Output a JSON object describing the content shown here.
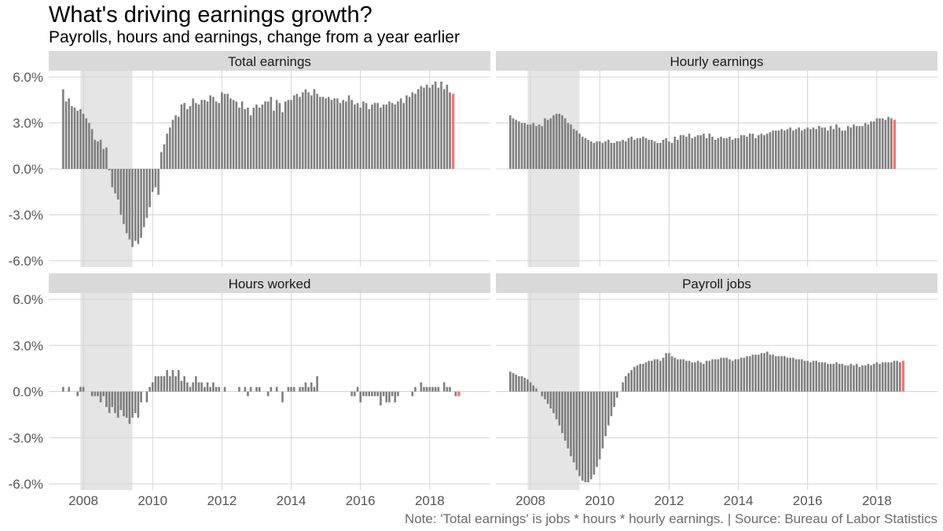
{
  "title": "What's driving earnings growth?",
  "subtitle": "Payrolls, hours and earnings, change from a year earlier",
  "caption": "Note: 'Total earnings' is jobs * hours * hourly earnings. | Source: Bureau of Labor Statistics",
  "chart_data": {
    "type": "bar",
    "layout": "facet-grid-2x2",
    "frequency": "monthly",
    "x_start": "2007-06",
    "x_end": "2019-04",
    "x_ticks": [
      "2008",
      "2010",
      "2012",
      "2014",
      "2016",
      "2018"
    ],
    "y_ticks": [
      "6.0%",
      "3.0%",
      "0.0%",
      "-3.0%",
      "-6.0%"
    ],
    "ylim": [
      -6.0,
      6.0
    ],
    "units": "percent change from a year earlier",
    "recession": {
      "start": "2007-12",
      "end": "2009-06"
    },
    "grid": true,
    "colors": {
      "bars": "#7f7f7f",
      "latest": "#f8766d",
      "recession": "#e5e5e5",
      "strip": "#d9d9d9",
      "grid": "#ebebeb"
    },
    "panels": [
      {
        "name": "Total earnings",
        "values": [
          5.2,
          4.4,
          4.6,
          4.1,
          4.0,
          3.8,
          3.9,
          3.6,
          3.3,
          3.0,
          2.6,
          1.9,
          1.8,
          1.9,
          1.3,
          1.4,
          -0.1,
          -1.2,
          -1.6,
          -2.0,
          -3.0,
          -3.6,
          -4.2,
          -4.6,
          -5.1,
          -4.7,
          -4.9,
          -4.5,
          -3.8,
          -3.2,
          -2.5,
          -1.5,
          -1.2,
          -1.7,
          1.1,
          1.6,
          2.3,
          2.7,
          3.2,
          3.5,
          3.4,
          4.2,
          4.3,
          3.9,
          4.1,
          4.6,
          4.3,
          4.2,
          4.5,
          4.5,
          4.4,
          4.8,
          4.7,
          4.4,
          4.3,
          5.0,
          4.9,
          4.9,
          4.6,
          4.5,
          4.4,
          4.0,
          4.4,
          3.9,
          4.0,
          3.5,
          4.0,
          4.2,
          4.0,
          4.2,
          4.4,
          4.4,
          4.7,
          3.8,
          4.5,
          4.3,
          3.7,
          4.4,
          4.5,
          4.5,
          4.8,
          4.9,
          4.7,
          5.0,
          5.2,
          5.0,
          4.8,
          5.2,
          4.9,
          4.7,
          4.7,
          4.6,
          4.7,
          4.5,
          4.6,
          4.6,
          4.3,
          4.5,
          4.4,
          4.8,
          4.5,
          4.2,
          4.3,
          4.0,
          4.4,
          4.3,
          3.9,
          4.2,
          4.3,
          4.3,
          4.0,
          4.2,
          4.2,
          4.4,
          4.3,
          4.2,
          4.4,
          4.6,
          4.3,
          4.8,
          4.7,
          5.0,
          4.9,
          5.2,
          5.4,
          5.3,
          5.5,
          5.3,
          5.5,
          5.7,
          5.3,
          5.7,
          5.2,
          5.5,
          5.0,
          4.9
        ]
      },
      {
        "name": "Hourly earnings",
        "values": [
          3.5,
          3.3,
          3.2,
          3.1,
          3.0,
          3.0,
          2.9,
          2.9,
          3.0,
          2.8,
          2.9,
          2.8,
          3.3,
          3.2,
          3.3,
          3.5,
          3.6,
          3.6,
          3.5,
          3.3,
          3.0,
          2.9,
          2.6,
          2.5,
          2.3,
          2.1,
          2.0,
          1.9,
          1.8,
          1.7,
          1.8,
          1.8,
          1.7,
          1.8,
          1.9,
          1.7,
          1.7,
          1.8,
          1.8,
          1.9,
          1.8,
          2.0,
          2.1,
          1.9,
          2.0,
          2.0,
          2.1,
          2.0,
          1.9,
          1.9,
          1.8,
          1.7,
          1.7,
          1.9,
          2.0,
          1.8,
          1.7,
          2.1,
          1.9,
          2.2,
          2.2,
          2.1,
          2.3,
          2.0,
          2.1,
          2.2,
          2.2,
          2.3,
          2.0,
          2.3,
          2.1,
          1.9,
          2.0,
          2.1,
          2.0,
          2.0,
          2.1,
          1.9,
          2.0,
          2.0,
          2.2,
          2.2,
          2.1,
          2.3,
          2.3,
          2.0,
          2.2,
          2.3,
          2.2,
          2.3,
          2.4,
          2.5,
          2.5,
          2.5,
          2.6,
          2.5,
          2.6,
          2.7,
          2.5,
          2.6,
          2.7,
          2.5,
          2.6,
          2.7,
          2.6,
          2.7,
          2.6,
          2.8,
          2.7,
          2.7,
          2.5,
          2.8,
          2.6,
          2.9,
          2.7,
          2.5,
          2.5,
          2.8,
          2.7,
          2.9,
          2.8,
          2.8,
          2.8,
          3.0,
          2.9,
          3.1,
          3.1,
          3.3,
          3.3,
          3.3,
          3.2,
          3.4,
          3.3,
          3.2
        ]
      },
      {
        "name": "Hours worked",
        "values": [
          0.3,
          0.0,
          0.3,
          0.0,
          0.0,
          -0.3,
          0.3,
          0.3,
          0.0,
          0.0,
          -0.3,
          -0.3,
          -0.3,
          -0.7,
          -0.3,
          -1.0,
          -1.4,
          -1.0,
          -1.4,
          -1.7,
          -1.2,
          -1.6,
          -1.7,
          -2.1,
          -1.7,
          -1.4,
          -1.7,
          -0.7,
          0.0,
          -0.7,
          0.3,
          0.6,
          1.0,
          1.0,
          1.0,
          1.0,
          1.4,
          1.0,
          1.4,
          1.0,
          1.4,
          0.7,
          1.0,
          0.6,
          0.3,
          0.6,
          1.0,
          0.6,
          0.6,
          0.3,
          0.6,
          0.3,
          0.6,
          0.3,
          0.3,
          0.0,
          0.3,
          0.0,
          0.0,
          0.0,
          0.0,
          0.3,
          0.0,
          0.3,
          -0.3,
          0.3,
          0.0,
          0.3,
          0.3,
          0.0,
          0.0,
          -0.3,
          0.3,
          0.0,
          0.3,
          0.0,
          -0.7,
          0.0,
          0.3,
          0.3,
          0.3,
          0.0,
          0.3,
          0.3,
          0.6,
          0.3,
          0.6,
          0.3,
          1.0,
          0.0,
          0.0,
          0.0,
          0.0,
          0.0,
          0.0,
          0.0,
          0.0,
          0.0,
          0.0,
          0.0,
          -0.3,
          -0.3,
          0.3,
          -0.7,
          -0.3,
          -0.3,
          -0.3,
          -0.3,
          -0.3,
          -0.3,
          -0.9,
          -0.3,
          -0.7,
          -0.7,
          -0.3,
          -0.7,
          -0.3,
          0.0,
          0.0,
          0.0,
          0.0,
          -0.3,
          0.3,
          0.0,
          0.6,
          0.3,
          0.3,
          0.3,
          0.3,
          0.3,
          0.3,
          0.0,
          0.6,
          0.3,
          0.3,
          0.0,
          -0.3,
          -0.3
        ]
      },
      {
        "name": "Payroll jobs",
        "values": [
          1.3,
          1.2,
          1.1,
          1.0,
          1.0,
          0.9,
          0.8,
          0.6,
          0.4,
          0.2,
          0.0,
          -0.3,
          -0.5,
          -0.8,
          -1.1,
          -1.4,
          -1.8,
          -2.2,
          -2.7,
          -3.2,
          -3.7,
          -4.2,
          -4.6,
          -5.1,
          -5.5,
          -5.8,
          -5.9,
          -5.9,
          -5.7,
          -5.4,
          -4.9,
          -4.4,
          -3.7,
          -2.9,
          -2.2,
          -1.6,
          -1.0,
          -0.4,
          0.0,
          0.6,
          1.0,
          1.2,
          1.4,
          1.6,
          1.7,
          1.8,
          1.8,
          1.9,
          2.0,
          2.0,
          2.1,
          2.1,
          2.0,
          2.2,
          2.5,
          2.5,
          2.3,
          2.2,
          2.1,
          2.1,
          2.1,
          2.0,
          2.0,
          1.9,
          1.9,
          2.0,
          1.9,
          1.8,
          2.0,
          2.0,
          2.1,
          2.1,
          2.1,
          2.2,
          2.2,
          2.2,
          2.1,
          2.0,
          2.1,
          2.1,
          2.2,
          2.2,
          2.3,
          2.3,
          2.4,
          2.4,
          2.4,
          2.5,
          2.5,
          2.6,
          2.4,
          2.4,
          2.3,
          2.3,
          2.3,
          2.3,
          2.2,
          2.2,
          2.2,
          2.1,
          2.1,
          2.1,
          2.0,
          2.0,
          1.9,
          2.0,
          2.0,
          1.9,
          1.9,
          1.9,
          1.8,
          1.8,
          1.8,
          1.9,
          1.8,
          1.8,
          1.7,
          1.7,
          1.8,
          1.7,
          1.8,
          1.6,
          1.7,
          1.7,
          1.8,
          1.7,
          1.8,
          1.9,
          1.8,
          1.9,
          1.9,
          1.9,
          1.9,
          2.0,
          2.0,
          1.9,
          2.0
        ]
      }
    ]
  }
}
